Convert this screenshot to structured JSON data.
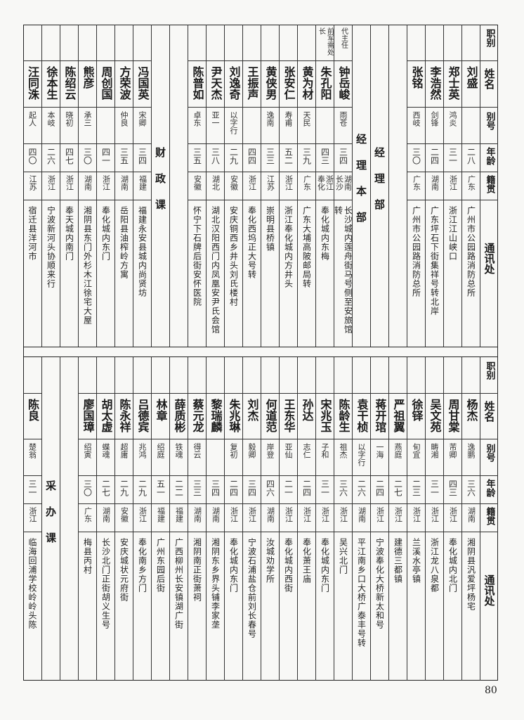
{
  "header_labels": [
    "职别",
    "姓名",
    "别号",
    "年龄",
    "籍贯",
    "通讯处"
  ],
  "top": {
    "columns": [
      {
        "type": "header"
      },
      {
        "type": "person",
        "title": "",
        "name": "刘盛",
        "alias": "",
        "age": "二八",
        "native": "广东",
        "address": "广州市公园路消防总所"
      },
      {
        "type": "person",
        "title": "",
        "name": "郑士英",
        "alias": "鸿炎",
        "age": "三一",
        "native": "浙江",
        "address": "浙江江山峡口"
      },
      {
        "type": "person",
        "title": "",
        "name": "李浩然",
        "alias": "剑锋",
        "age": "二四",
        "native": "湖南",
        "address": "广东坪石下街集祥号转北岸"
      },
      {
        "type": "person",
        "title": "",
        "name": "张铭",
        "alias": "西岐",
        "age": "三〇",
        "native": "广东",
        "address": "广州市公园路消防总所"
      },
      {
        "type": "blank"
      },
      {
        "type": "section",
        "label": "经理部"
      },
      {
        "type": "section",
        "label": "经理本部"
      },
      {
        "type": "person",
        "title": "代主任",
        "name": "钟岳峻",
        "alias": "雨苍",
        "age": "三四",
        "native": "湖南长沙",
        "address": "长沙城内莲舟街马号侧至安旅馆转"
      },
      {
        "type": "person",
        "title": "前军需处长",
        "name": "朱孔阳",
        "alias": "",
        "age": "四三",
        "native": "浙江奉化",
        "address": "奉化城内东梅"
      },
      {
        "type": "person",
        "title": "",
        "name": "黄为材",
        "alias": "天民",
        "age": "三九",
        "native": "广东",
        "address": "广东大埔高陂邮局转"
      },
      {
        "type": "person",
        "title": "",
        "name": "张安仁",
        "alias": "寿甫",
        "age": "五二",
        "native": "浙江",
        "address": "浙江奉化城内方井头"
      },
      {
        "type": "person",
        "title": "",
        "name": "黄侠男",
        "alias": "逸南",
        "age": "三三",
        "native": "江苏",
        "address": "崇明县桥镇"
      },
      {
        "type": "person",
        "title": "",
        "name": "王振声",
        "alias": "",
        "age": "四四",
        "native": "浙江",
        "address": "奉化西坞正大号转"
      },
      {
        "type": "person",
        "title": "",
        "name": "刘逸奇",
        "alias": "以字行",
        "age": "二九",
        "native": "安徽",
        "address": "安庆铜西乡井头刘氏楼村"
      },
      {
        "type": "person",
        "title": "",
        "name": "尹天杰",
        "alias": "亚一",
        "age": "三八",
        "native": "湖北",
        "address": "湖北汉阳西门内凤凰安尹氏会馆"
      },
      {
        "type": "person",
        "title": "",
        "name": "陈普如",
        "alias": "卓东",
        "age": "三五",
        "native": "安徽",
        "address": "怀宁下石牌后街安怀医院"
      },
      {
        "type": "blank"
      },
      {
        "type": "section",
        "label": "财政课"
      },
      {
        "type": "person",
        "title": "",
        "name": "冯国英",
        "alias": "宋卿",
        "age": "三四",
        "native": "福建",
        "address": "福建永安县城内尚贤坊"
      },
      {
        "type": "person",
        "title": "",
        "name": "方荣波",
        "alias": "仲良",
        "age": "三五",
        "native": "湖南",
        "address": "岳阳县油榨岭方寓"
      },
      {
        "type": "person",
        "title": "",
        "name": "周创国",
        "alias": "",
        "age": "四一",
        "native": "浙江",
        "address": "奉化城内东门"
      },
      {
        "type": "person",
        "title": "",
        "name": "熊彦",
        "alias": "承三",
        "age": "三〇",
        "native": "湖南",
        "address": "湘阴县东门外杉木江徐宅大屋"
      },
      {
        "type": "person",
        "title": "",
        "name": "陈绍云",
        "alias": "晓初",
        "age": "四七",
        "native": "浙江",
        "address": "奉天城内南门"
      },
      {
        "type": "person",
        "title": "",
        "name": "徐本生",
        "alias": "本岐",
        "age": "二六",
        "native": "浙江",
        "address": "宁波新河头协顺来行"
      },
      {
        "type": "person",
        "title": "",
        "name": "汪同洙",
        "alias": "起人",
        "age": "四〇",
        "native": "江苏",
        "address": "宿迁县洋河市"
      }
    ]
  },
  "bottom": {
    "columns": [
      {
        "type": "header"
      },
      {
        "type": "person",
        "title": "",
        "name": "杨杰",
        "alias": "逸鹏",
        "age": "三六",
        "native": "湖南",
        "address": "湘阴县汎爱坪杨宅"
      },
      {
        "type": "person",
        "title": "",
        "name": "周甘棠",
        "alias": "芾卿",
        "age": "四三",
        "native": "浙江",
        "address": "奉化城内北门"
      },
      {
        "type": "person",
        "title": "",
        "name": "吴文苑",
        "alias": "畴湘",
        "age": "三一",
        "native": "浙江",
        "address": "浙江龙八泉都"
      },
      {
        "type": "person",
        "title": "",
        "name": "徐铎",
        "alias": "旬宜",
        "age": "二三",
        "native": "浙江",
        "address": "兰溪水亭镇"
      },
      {
        "type": "person",
        "title": "",
        "name": "严祖翼",
        "alias": "燕庭",
        "age": "二七",
        "native": "浙江",
        "address": "建德三都镇"
      },
      {
        "type": "person",
        "title": "",
        "name": "蒋开琯",
        "alias": "一海",
        "age": "二四",
        "native": "浙江",
        "address": "宁波奉化大桥新太和号"
      },
      {
        "type": "person",
        "title": "",
        "name": "袁干桢",
        "alias": "以字行",
        "age": "二六",
        "native": "湖南",
        "address": "平江南乡口大桥广泰丰号转"
      },
      {
        "type": "person",
        "title": "",
        "name": "陈龄生",
        "alias": "祖杰",
        "age": "三六",
        "native": "浙江",
        "address": "吴兴北门"
      },
      {
        "type": "person",
        "title": "",
        "name": "宋兆玉",
        "alias": "子和",
        "age": "三一",
        "native": "浙江",
        "address": "奉化城内东门"
      },
      {
        "type": "person",
        "title": "",
        "name": "孙达",
        "alias": "志仁",
        "age": "二四",
        "native": "浙江",
        "address": "奉化萧王庙"
      },
      {
        "type": "person",
        "title": "",
        "name": "王东华",
        "alias": "亚仙",
        "age": "二一",
        "native": "浙江",
        "address": "奉化城内西街"
      },
      {
        "type": "person",
        "title": "",
        "name": "何道范",
        "alias": "岸登",
        "age": "四六",
        "native": "湖南",
        "address": "汝城劝学所"
      },
      {
        "type": "person",
        "title": "",
        "name": "刘杰",
        "alias": "毅卿",
        "age": "三四",
        "native": "浙江",
        "address": "宁波石浦盐仓前刘长春号"
      },
      {
        "type": "person",
        "title": "",
        "name": "朱兆琳",
        "alias": "复初",
        "age": "二四",
        "native": "浙江",
        "address": "奉化城内东门"
      },
      {
        "type": "person",
        "title": "",
        "name": "黎瑞麟",
        "alias": "",
        "age": "三四",
        "native": "湖南",
        "address": "湘阴东乡界头铺李家垄"
      },
      {
        "type": "person",
        "title": "",
        "name": "蔡元龙",
        "alias": "得云",
        "age": "三三",
        "native": "湖南",
        "address": "湘阴南正街萧祠"
      },
      {
        "type": "person",
        "title": "",
        "name": "薛质彬",
        "alias": "铁魂",
        "age": "二二",
        "native": "福建",
        "address": "广西柳州长安镇湖广街"
      },
      {
        "type": "person",
        "title": "",
        "name": "林章",
        "alias": "绍庭",
        "age": "五一",
        "native": "福建",
        "address": "广州东园后街"
      },
      {
        "type": "person",
        "title": "",
        "name": "吕德宾",
        "alias": "兆鸿",
        "age": "二九",
        "native": "浙江",
        "address": "奉化南乡方门"
      },
      {
        "type": "person",
        "title": "",
        "name": "陈永祥",
        "alias": "超庸",
        "age": "二九",
        "native": "安徽",
        "address": "安庆城状元府街"
      },
      {
        "type": "person",
        "title": "",
        "name": "胡太虚",
        "alias": "蝶魂",
        "age": "二七",
        "native": "湖南",
        "address": "长沙北门正街胡义生号"
      },
      {
        "type": "person",
        "title": "",
        "name": "廖国璋",
        "alias": "绍寅",
        "age": "三〇",
        "native": "广东",
        "address": "梅县丙村"
      },
      {
        "type": "blank"
      },
      {
        "type": "section",
        "label": "采办课"
      },
      {
        "type": "person",
        "title": "",
        "name": "陈良",
        "alias": "楚翁",
        "age": "三一",
        "native": "浙江",
        "address": "临海回浦学校岭岭头陈"
      }
    ]
  },
  "page_number": "80"
}
